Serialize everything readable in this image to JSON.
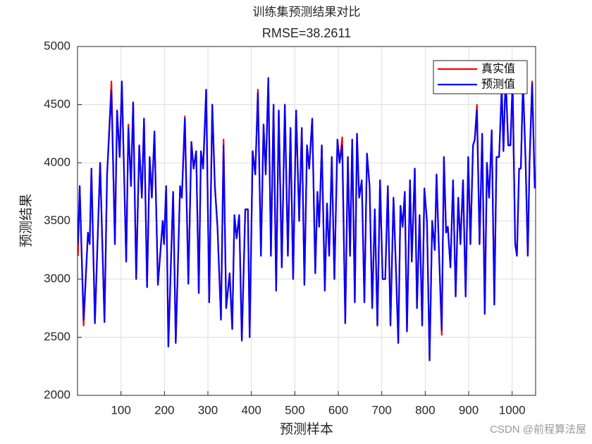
{
  "chart_data": {
    "type": "line",
    "title": "训练集预测结果对比",
    "subtitle": "RMSE=38.2611",
    "x_label": "预测样本",
    "y_label": "预测结果",
    "watermark": "CSDN @前程算法屋",
    "xlim": [
      0,
      1054
    ],
    "ylim": [
      2000,
      5000
    ],
    "xticks": [
      100,
      200,
      300,
      400,
      500,
      600,
      700,
      800,
      900,
      1000
    ],
    "yticks": [
      2000,
      2500,
      3000,
      3500,
      4000,
      4500,
      5000
    ],
    "grid": true,
    "legend": "upper right",
    "x": [
      1,
      5,
      14,
      24,
      28,
      32,
      40,
      52,
      62,
      68,
      78,
      86,
      91,
      97,
      102,
      112,
      117,
      123,
      128,
      135,
      142,
      148,
      153,
      160,
      166,
      171,
      177,
      185,
      196,
      199,
      204,
      209,
      220,
      226,
      236,
      240,
      247,
      255,
      262,
      267,
      273,
      279,
      284,
      289,
      296,
      303,
      310,
      316,
      322,
      330,
      336,
      342,
      350,
      356,
      361,
      366,
      372,
      378,
      386,
      392,
      396,
      403,
      409,
      415,
      422,
      428,
      433,
      439,
      445,
      451,
      457,
      463,
      470,
      477,
      484,
      490,
      496,
      503,
      510,
      516,
      522,
      528,
      533,
      540,
      547,
      552,
      556,
      562,
      569,
      574,
      579,
      585,
      591,
      598,
      603,
      609,
      616,
      622,
      627,
      632,
      638,
      643,
      648,
      654,
      660,
      666,
      672,
      678,
      684,
      690,
      696,
      702,
      708,
      714,
      720,
      727,
      733,
      738,
      743,
      748,
      753,
      758,
      765,
      769,
      776,
      781,
      787,
      793,
      798,
      804,
      810,
      816,
      822,
      826,
      832,
      838,
      843,
      848,
      852,
      858,
      864,
      870,
      876,
      881,
      887,
      893,
      899,
      904,
      910,
      914,
      919,
      925,
      931,
      937,
      942,
      947,
      953,
      959,
      964,
      970,
      976,
      980,
      985,
      991,
      996,
      1001,
      1007,
      1011,
      1016,
      1020,
      1025,
      1031,
      1036,
      1040,
      1046,
      1052
    ],
    "series": [
      {
        "name": "真实值",
        "color": "#ff0000",
        "values": [
          3200,
          3800,
          2600,
          3400,
          3300,
          3950,
          2620,
          4000,
          2630,
          3900,
          4700,
          3300,
          4450,
          4050,
          4700,
          3150,
          4330,
          3800,
          4520,
          3000,
          4150,
          3700,
          4380,
          2930,
          4050,
          3700,
          4270,
          2950,
          3500,
          3300,
          3800,
          2420,
          3750,
          2450,
          3800,
          3700,
          4400,
          2960,
          4180,
          3950,
          4100,
          2880,
          4100,
          3950,
          4630,
          2800,
          4500,
          3800,
          3450,
          2650,
          4200,
          2750,
          3050,
          2570,
          3550,
          3350,
          3550,
          2470,
          3600,
          3600,
          2500,
          4100,
          3900,
          4630,
          3200,
          4330,
          3900,
          4730,
          3200,
          4500,
          2900,
          4450,
          3100,
          4500,
          3200,
          4300,
          3000,
          4450,
          3500,
          4300,
          2950,
          4150,
          3950,
          4380,
          3050,
          3750,
          3450,
          4150,
          2900,
          3650,
          3200,
          4050,
          3000,
          4200,
          4000,
          4220,
          2620,
          4050,
          3200,
          4200,
          2800,
          4250,
          3700,
          3850,
          2800,
          4080,
          3800,
          2750,
          3600,
          2600,
          3850,
          3000,
          3000,
          3800,
          2600,
          3700,
          3050,
          2450,
          3630,
          3450,
          3750,
          2550,
          3850,
          3150,
          3950,
          2750,
          3550,
          2600,
          3780,
          3500,
          2300,
          3500,
          3250,
          3900,
          3200,
          2520,
          4050,
          3400,
          3450,
          3100,
          3850,
          2850,
          3700,
          3300,
          3850,
          2850,
          4050,
          3300,
          4150,
          4200,
          4500,
          3300,
          4250,
          2700,
          4000,
          3700,
          4280,
          2780,
          4050,
          4050,
          4650,
          4100,
          4750,
          4150,
          4150,
          4700,
          3300,
          3200,
          3950,
          3950,
          4700,
          4000,
          3200,
          4000,
          4700,
          3780
        ]
      },
      {
        "name": "预测值",
        "color": "#0000ff",
        "values": [
          3300,
          3800,
          2650,
          3400,
          3300,
          3950,
          2620,
          4000,
          2630,
          3900,
          4620,
          3300,
          4450,
          4050,
          4700,
          3150,
          4300,
          3800,
          4520,
          3000,
          4150,
          3700,
          4380,
          2930,
          4050,
          3700,
          4270,
          2950,
          3500,
          3300,
          3800,
          2420,
          3750,
          2450,
          3800,
          3700,
          4380,
          2960,
          4180,
          3950,
          4100,
          2880,
          4100,
          3950,
          4630,
          2800,
          4500,
          3800,
          3450,
          2650,
          4150,
          2750,
          3050,
          2570,
          3550,
          3350,
          3550,
          2470,
          3600,
          3600,
          2500,
          4100,
          3900,
          4600,
          3200,
          4330,
          3900,
          4730,
          3200,
          4500,
          2900,
          4450,
          3100,
          4500,
          3200,
          4300,
          3000,
          4450,
          3500,
          4300,
          2950,
          4150,
          3950,
          4380,
          3050,
          3750,
          3450,
          4150,
          2900,
          3650,
          3200,
          4050,
          3000,
          4200,
          4000,
          4150,
          2620,
          4050,
          3200,
          4200,
          2800,
          4250,
          3700,
          3850,
          2800,
          4080,
          3800,
          2750,
          3600,
          2600,
          3850,
          3000,
          3000,
          3800,
          2600,
          3700,
          3050,
          2450,
          3630,
          3450,
          3750,
          2550,
          3850,
          3150,
          3950,
          2750,
          3550,
          2600,
          3780,
          3500,
          2300,
          3500,
          3250,
          3900,
          3200,
          2560,
          4050,
          3400,
          3450,
          3100,
          3850,
          2850,
          3700,
          3300,
          3850,
          2850,
          4050,
          3300,
          4150,
          4200,
          4450,
          3300,
          4250,
          2700,
          4000,
          3700,
          4280,
          2780,
          4050,
          4050,
          4650,
          4100,
          4750,
          4150,
          4150,
          4700,
          3300,
          3200,
          3950,
          3950,
          4700,
          4000,
          3200,
          4000,
          4680,
          3780
        ]
      }
    ]
  }
}
